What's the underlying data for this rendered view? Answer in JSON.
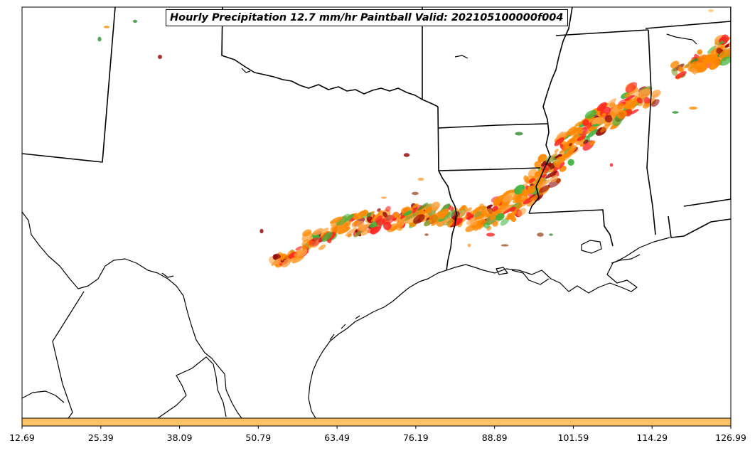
{
  "map": {
    "title": "Hourly Precipitation 12.7 mm/hr Paintball Valid: 202105100000f004",
    "region": "South-Central United States",
    "colorbar": {
      "color": "#FFC266",
      "tick_labels": [
        "12.69",
        "25.39",
        "38.09",
        "50.79",
        "63.49",
        "76.19",
        "88.89",
        "101.59",
        "114.29",
        "126.99"
      ]
    },
    "member_colors": [
      "#FF8800",
      "#FFA040",
      "#FF2020",
      "#8B0000",
      "#3CB33C",
      "#2E8B2E",
      "#8FA03A",
      "#FFC266",
      "#A0522D"
    ]
  }
}
